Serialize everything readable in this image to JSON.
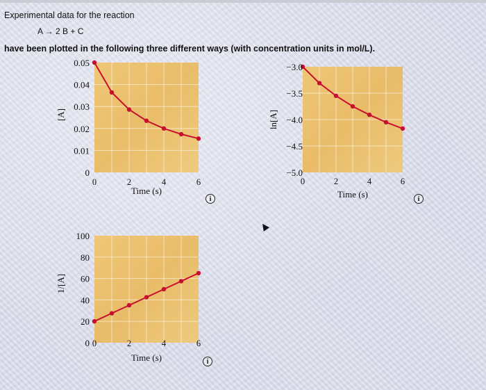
{
  "header": {
    "title": "Experimental data for the reaction",
    "reaction": "A → 2 B + C",
    "intro": "have been plotted in the following three different ways (with concentration units in mol/L)."
  },
  "info_icon": "i",
  "chart_data": [
    {
      "type": "line",
      "ylabel": "[A]",
      "xlabel": "Time (s)",
      "x": [
        0,
        1,
        2,
        3,
        4,
        5,
        6
      ],
      "values": [
        0.05,
        0.0364,
        0.0286,
        0.0235,
        0.02,
        0.0174,
        0.0154
      ],
      "xlim": [
        0,
        6
      ],
      "ylim": [
        0,
        0.05
      ],
      "xticks": [
        "0",
        "2",
        "4",
        "6"
      ],
      "yticks": [
        "0",
        "0.01",
        "0.02",
        "0.03",
        "0.04",
        "0.05"
      ],
      "grid": true,
      "line_color": "#c8102e"
    },
    {
      "type": "line",
      "ylabel": "ln[A]",
      "xlabel": "Time (s)",
      "x": [
        0,
        1,
        2,
        3,
        4,
        5,
        6
      ],
      "values": [
        -3.0,
        -3.31,
        -3.55,
        -3.75,
        -3.91,
        -4.05,
        -4.17
      ],
      "xlim": [
        0,
        6
      ],
      "ylim": [
        -5.0,
        -3.0
      ],
      "xticks": [
        "0",
        "2",
        "4",
        "6"
      ],
      "yticks": [
        "-5.0",
        "-4.5",
        "-4.0",
        "-3.5",
        "-3.0"
      ],
      "grid": true,
      "line_color": "#c8102e"
    },
    {
      "type": "line",
      "ylabel": "1/[A]",
      "xlabel": "Time (s)",
      "x": [
        0,
        1,
        2,
        3,
        4,
        5,
        6
      ],
      "values": [
        20,
        27.5,
        35,
        42.5,
        50,
        57.5,
        65
      ],
      "xlim": [
        0,
        6
      ],
      "ylim": [
        0,
        100
      ],
      "xticks": [
        "0",
        "2",
        "4",
        "6"
      ],
      "yticks": [
        "0",
        "20",
        "40",
        "60",
        "80",
        "100"
      ],
      "grid": true,
      "line_color": "#c8102e"
    }
  ]
}
